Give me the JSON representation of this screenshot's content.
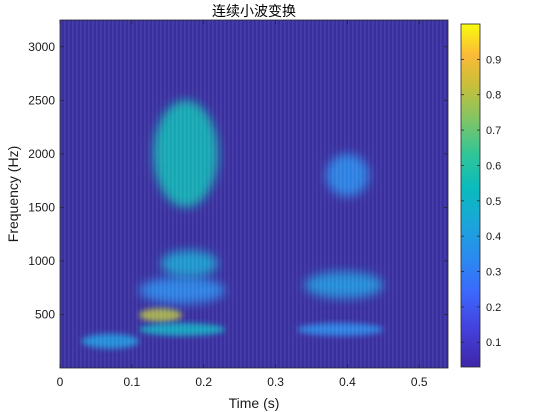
{
  "chart_data": {
    "type": "heatmap",
    "title": "连续小波变换",
    "xlabel": "Time (s)",
    "ylabel": "Frequency (Hz)",
    "xlim": [
      0,
      0.54
    ],
    "ylim": [
      0,
      3250
    ],
    "x_ticks": [
      0,
      0.1,
      0.2,
      0.3,
      0.4,
      0.5
    ],
    "x_tick_labels": [
      "0",
      "0.1",
      "0.2",
      "0.3",
      "0.4",
      "0.5"
    ],
    "y_ticks": [
      500,
      1000,
      1500,
      2000,
      2500,
      3000
    ],
    "y_tick_labels": [
      "500",
      "1000",
      "1500",
      "2000",
      "2500",
      "3000"
    ],
    "colorbar": {
      "range": [
        0.03,
        1.0
      ],
      "ticks": [
        0.1,
        0.2,
        0.3,
        0.4,
        0.5,
        0.6,
        0.7,
        0.8,
        0.9
      ],
      "tick_labels": [
        "0.1",
        "0.2",
        "0.3",
        "0.4",
        "0.5",
        "0.6",
        "0.7",
        "0.8",
        "0.9"
      ],
      "colormap": "parula"
    },
    "regions": [
      {
        "t": [
          0.03,
          0.11
        ],
        "f": [
          180,
          320
        ],
        "value": 0.4
      },
      {
        "t": [
          0.11,
          0.17
        ],
        "f": [
          430,
          560
        ],
        "value": 0.8
      },
      {
        "t": [
          0.11,
          0.23
        ],
        "f": [
          300,
          420
        ],
        "value": 0.5
      },
      {
        "t": [
          0.11,
          0.23
        ],
        "f": [
          600,
          850
        ],
        "value": 0.35
      },
      {
        "t": [
          0.14,
          0.22
        ],
        "f": [
          850,
          1100
        ],
        "value": 0.45
      },
      {
        "t": [
          0.13,
          0.22
        ],
        "f": [
          1500,
          2500
        ],
        "value": 0.55
      },
      {
        "t": [
          0.33,
          0.45
        ],
        "f": [
          300,
          420
        ],
        "value": 0.35
      },
      {
        "t": [
          0.34,
          0.45
        ],
        "f": [
          650,
          900
        ],
        "value": 0.4
      },
      {
        "t": [
          0.37,
          0.43
        ],
        "f": [
          1600,
          2000
        ],
        "value": 0.35
      }
    ]
  }
}
